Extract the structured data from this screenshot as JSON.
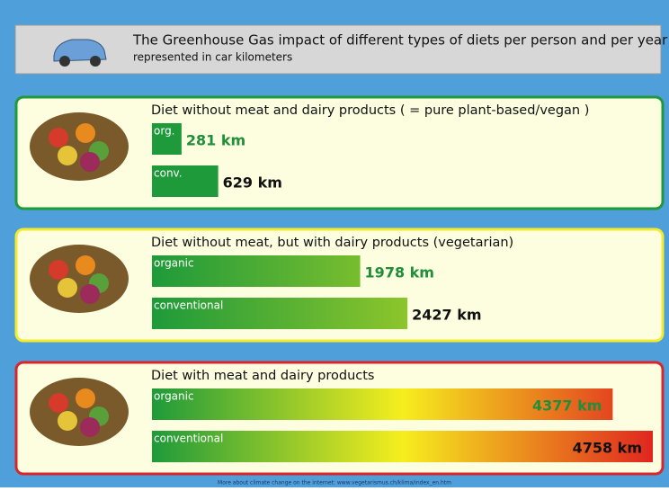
{
  "chart_data": {
    "type": "bar",
    "title": "The Greenhouse Gas impact of different types of diets per person and per year",
    "subtitle": "represented in car kilometers",
    "footer": "More about climate change on the internet: www.vegetarismus.ch/klima/index_en.htm",
    "groups": [
      {
        "title": "Diet without meat and dairy products ( = pure plant-based/vegan )",
        "border": "#1e9a3a",
        "colors": [
          "#1e9a3a",
          "#1e9a3a"
        ],
        "bars": [
          {
            "name": "org.",
            "value": 281,
            "value_label": "281 km",
            "label_color": "#1f8f3a"
          },
          {
            "name": "conv.",
            "value": 629,
            "value_label": "629 km",
            "label_color": "#111111"
          }
        ]
      },
      {
        "title": "Diet without meat, but with dairy products (vegetarian)",
        "border": "#f3ec2a",
        "colors": [
          "#1e9a3a",
          "#f6ee1e"
        ],
        "bars": [
          {
            "name": "organic",
            "value": 1978,
            "value_label": "1978 km",
            "label_color": "#1f8f3a"
          },
          {
            "name": "conventional",
            "value": 2427,
            "value_label": "2427 km",
            "label_color": "#111111"
          }
        ]
      },
      {
        "title": "Diet with meat and dairy products",
        "border": "#d9252b",
        "colors": [
          "#1e9a3a",
          "#f6ee1e",
          "#e0261f"
        ],
        "bars": [
          {
            "name": "organic",
            "value": 4377,
            "value_label": "4377 km",
            "label_color": "#1f8f3a"
          },
          {
            "name": "conventional",
            "value": 4758,
            "value_label": "4758 km",
            "label_color": "#111111"
          }
        ]
      }
    ]
  }
}
